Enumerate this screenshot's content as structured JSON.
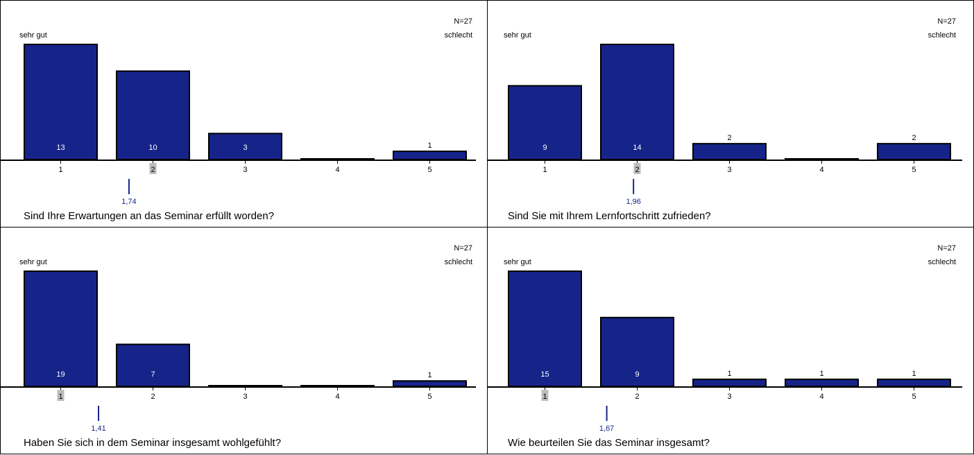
{
  "colors": {
    "bar": "#16248a",
    "bar_border": "#000000",
    "median_highlight": "#bdbdbd",
    "mean_marker": "#16248a",
    "mean_text": "#16248a"
  },
  "chart_data": [
    {
      "type": "bar",
      "question": "Sind Ihre Erwartungen an das Seminar erfüllt worden?",
      "n_label": "N=27",
      "left_label": "sehr gut",
      "right_label": "schlecht",
      "categories": [
        "1",
        "2",
        "3",
        "4",
        "5"
      ],
      "values": [
        13,
        10,
        3,
        0,
        1
      ],
      "value_labels": [
        "13",
        "10",
        "3",
        "",
        "1"
      ],
      "median_category": "2",
      "mean": 1.74,
      "mean_label": "1,74",
      "ylim": [
        0,
        13
      ]
    },
    {
      "type": "bar",
      "question": "Sind Sie mit Ihrem Lernfortschritt zufrieden?",
      "n_label": "N=27",
      "left_label": "sehr gut",
      "right_label": "schlecht",
      "categories": [
        "1",
        "2",
        "3",
        "4",
        "5"
      ],
      "values": [
        9,
        14,
        2,
        0,
        2
      ],
      "value_labels": [
        "9",
        "14",
        "2",
        "",
        "2"
      ],
      "median_category": "2",
      "mean": 1.96,
      "mean_label": "1,96",
      "ylim": [
        0,
        14
      ]
    },
    {
      "type": "bar",
      "question": "Haben Sie sich in dem Seminar insgesamt wohlgefühlt?",
      "n_label": "N=27",
      "left_label": "sehr gut",
      "right_label": "schlecht",
      "categories": [
        "1",
        "2",
        "3",
        "4",
        "5"
      ],
      "values": [
        19,
        7,
        0,
        0,
        1
      ],
      "value_labels": [
        "19",
        "7",
        "",
        "",
        "1"
      ],
      "median_category": "1",
      "mean": 1.41,
      "mean_label": "1,41",
      "ylim": [
        0,
        19
      ]
    },
    {
      "type": "bar",
      "question": "Wie beurteilen Sie das Seminar insgesamt?",
      "n_label": "N=27",
      "left_label": "sehr gut",
      "right_label": "schlecht",
      "categories": [
        "1",
        "2",
        "3",
        "4",
        "5"
      ],
      "values": [
        15,
        9,
        1,
        1,
        1
      ],
      "value_labels": [
        "15",
        "9",
        "1",
        "1",
        "1"
      ],
      "median_category": "1",
      "mean": 1.67,
      "mean_label": "1,67",
      "ylim": [
        0,
        15
      ]
    }
  ]
}
